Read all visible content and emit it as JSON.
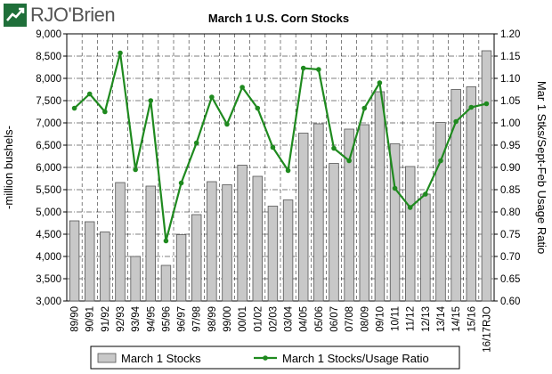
{
  "brand": {
    "name": "RJO'Brien",
    "color": "#1a7a3a"
  },
  "chart_data": {
    "type": "bar+line",
    "title": "March 1 U.S. Corn Stocks",
    "ylabel_left": "-million bushels-",
    "ylabel_right": "Mar 1 Stks/Sept-Feb Usage Ratio",
    "ylim_left": [
      3000,
      9000
    ],
    "ylim_right": [
      0.6,
      1.2
    ],
    "yticks_left": [
      "3,000",
      "3,500",
      "4,000",
      "4,500",
      "5,000",
      "5,500",
      "6,000",
      "6,500",
      "7,000",
      "7,500",
      "8,000",
      "8,500",
      "9,000"
    ],
    "yticks_right": [
      "0.60",
      "0.65",
      "0.70",
      "0.75",
      "0.80",
      "0.85",
      "0.90",
      "0.95",
      "1.00",
      "1.05",
      "1.10",
      "1.15",
      "1.20"
    ],
    "categories": [
      "89/90",
      "90/91",
      "91/92",
      "92/93",
      "93/94",
      "94/95",
      "95/96",
      "96/97",
      "97/98",
      "98/99",
      "99/00",
      "00/01",
      "01/02",
      "02/03",
      "03/04",
      "04/05",
      "05/06",
      "06/07",
      "07/08",
      "08/09",
      "09/10",
      "10/11",
      "11/12",
      "12/13",
      "13/14",
      "14/15",
      "15/16",
      "16/17RJO"
    ],
    "series": [
      {
        "name": "March 1 Stocks",
        "kind": "bar",
        "axis": "left",
        "color": "#c8c8c8",
        "values": [
          4800,
          4780,
          4550,
          5660,
          4000,
          5580,
          3800,
          4490,
          4940,
          5680,
          5610,
          6050,
          5800,
          5130,
          5270,
          6770,
          6980,
          6090,
          6860,
          6960,
          7700,
          6530,
          6020,
          5400,
          7010,
          7750,
          7810,
          8620
        ]
      },
      {
        "name": "March 1 Stocks/Usage Ratio",
        "kind": "line",
        "axis": "right",
        "color": "#1f8a1f",
        "values": [
          1.033,
          1.065,
          1.025,
          1.157,
          0.895,
          1.05,
          0.735,
          0.865,
          0.955,
          1.058,
          0.997,
          1.08,
          1.033,
          0.945,
          0.893,
          1.123,
          1.12,
          0.943,
          0.915,
          1.033,
          1.09,
          0.853,
          0.81,
          0.84,
          0.915,
          1.003,
          1.035,
          1.043
        ]
      }
    ],
    "grid": "horizontal dashed",
    "legend": "bottom"
  }
}
